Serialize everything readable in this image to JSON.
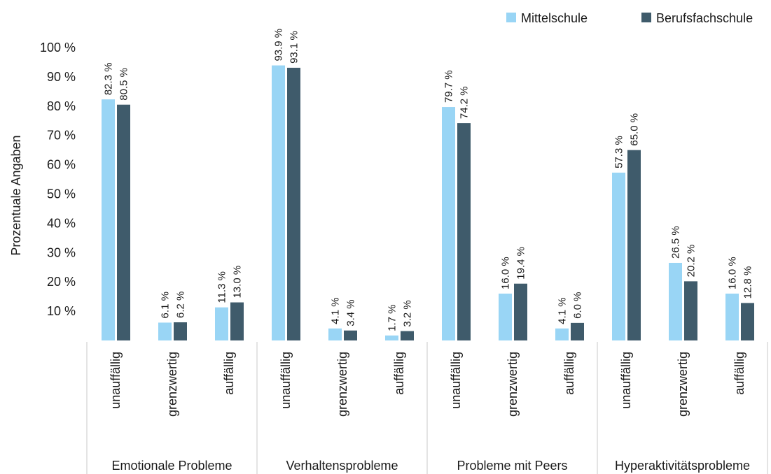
{
  "chart_data": {
    "type": "bar",
    "ylabel": "Prozentuale Angaben",
    "ylim": [
      0,
      100
    ],
    "y_ticks": [
      {
        "value": 10,
        "label": "10 %"
      },
      {
        "value": 20,
        "label": "20 %"
      },
      {
        "value": 30,
        "label": "30 %"
      },
      {
        "value": 40,
        "label": "40 %"
      },
      {
        "value": 50,
        "label": "50 %"
      },
      {
        "value": 60,
        "label": "60 %"
      },
      {
        "value": 70,
        "label": "70 %"
      },
      {
        "value": 80,
        "label": "80 %"
      },
      {
        "value": 90,
        "label": "90 %"
      },
      {
        "value": 100,
        "label": "100 %"
      }
    ],
    "grid": false,
    "legend_position": "top-right",
    "groups": [
      {
        "label": "Emotionale Probleme",
        "categories": [
          "unauffällig",
          "grenzwertig",
          "auffällig"
        ]
      },
      {
        "label": "Verhaltensprobleme",
        "categories": [
          "unauffällig",
          "grenzwertig",
          "auffällig"
        ]
      },
      {
        "label": "Probleme mit Peers",
        "categories": [
          "unauffällig",
          "grenzwertig",
          "auffällig"
        ]
      },
      {
        "label": "Hyperaktivitätsprobleme",
        "categories": [
          "unauffällig",
          "grenzwertig",
          "auffällig"
        ]
      }
    ],
    "series": [
      {
        "name": "Mittelschule",
        "color": "#99d5f5",
        "values": [
          82.3,
          6.1,
          11.3,
          93.9,
          4.1,
          1.7,
          79.7,
          16.0,
          4.1,
          57.3,
          26.5,
          16.0
        ],
        "labels": [
          "82.3 %",
          "6.1 %",
          "11.3 %",
          "93.9 %",
          "4.1 %",
          "1.7 %",
          "79.7 %",
          "16.0 %",
          "4.1 %",
          "57.3 %",
          "26.5 %",
          "16.0 %"
        ]
      },
      {
        "name": "Berufsfachschule",
        "color": "#3f5b6b",
        "values": [
          80.5,
          6.2,
          13.0,
          93.1,
          3.4,
          3.2,
          74.2,
          19.4,
          6.0,
          65.0,
          20.2,
          12.8
        ],
        "labels": [
          "80.5 %",
          "6.2 %",
          "13.0 %",
          "93.1 %",
          "3.4 %",
          "3.2 %",
          "74.2 %",
          "19.4 %",
          "6.0 %",
          "65.0 %",
          "20.2 %",
          "12.8 %"
        ]
      }
    ]
  }
}
